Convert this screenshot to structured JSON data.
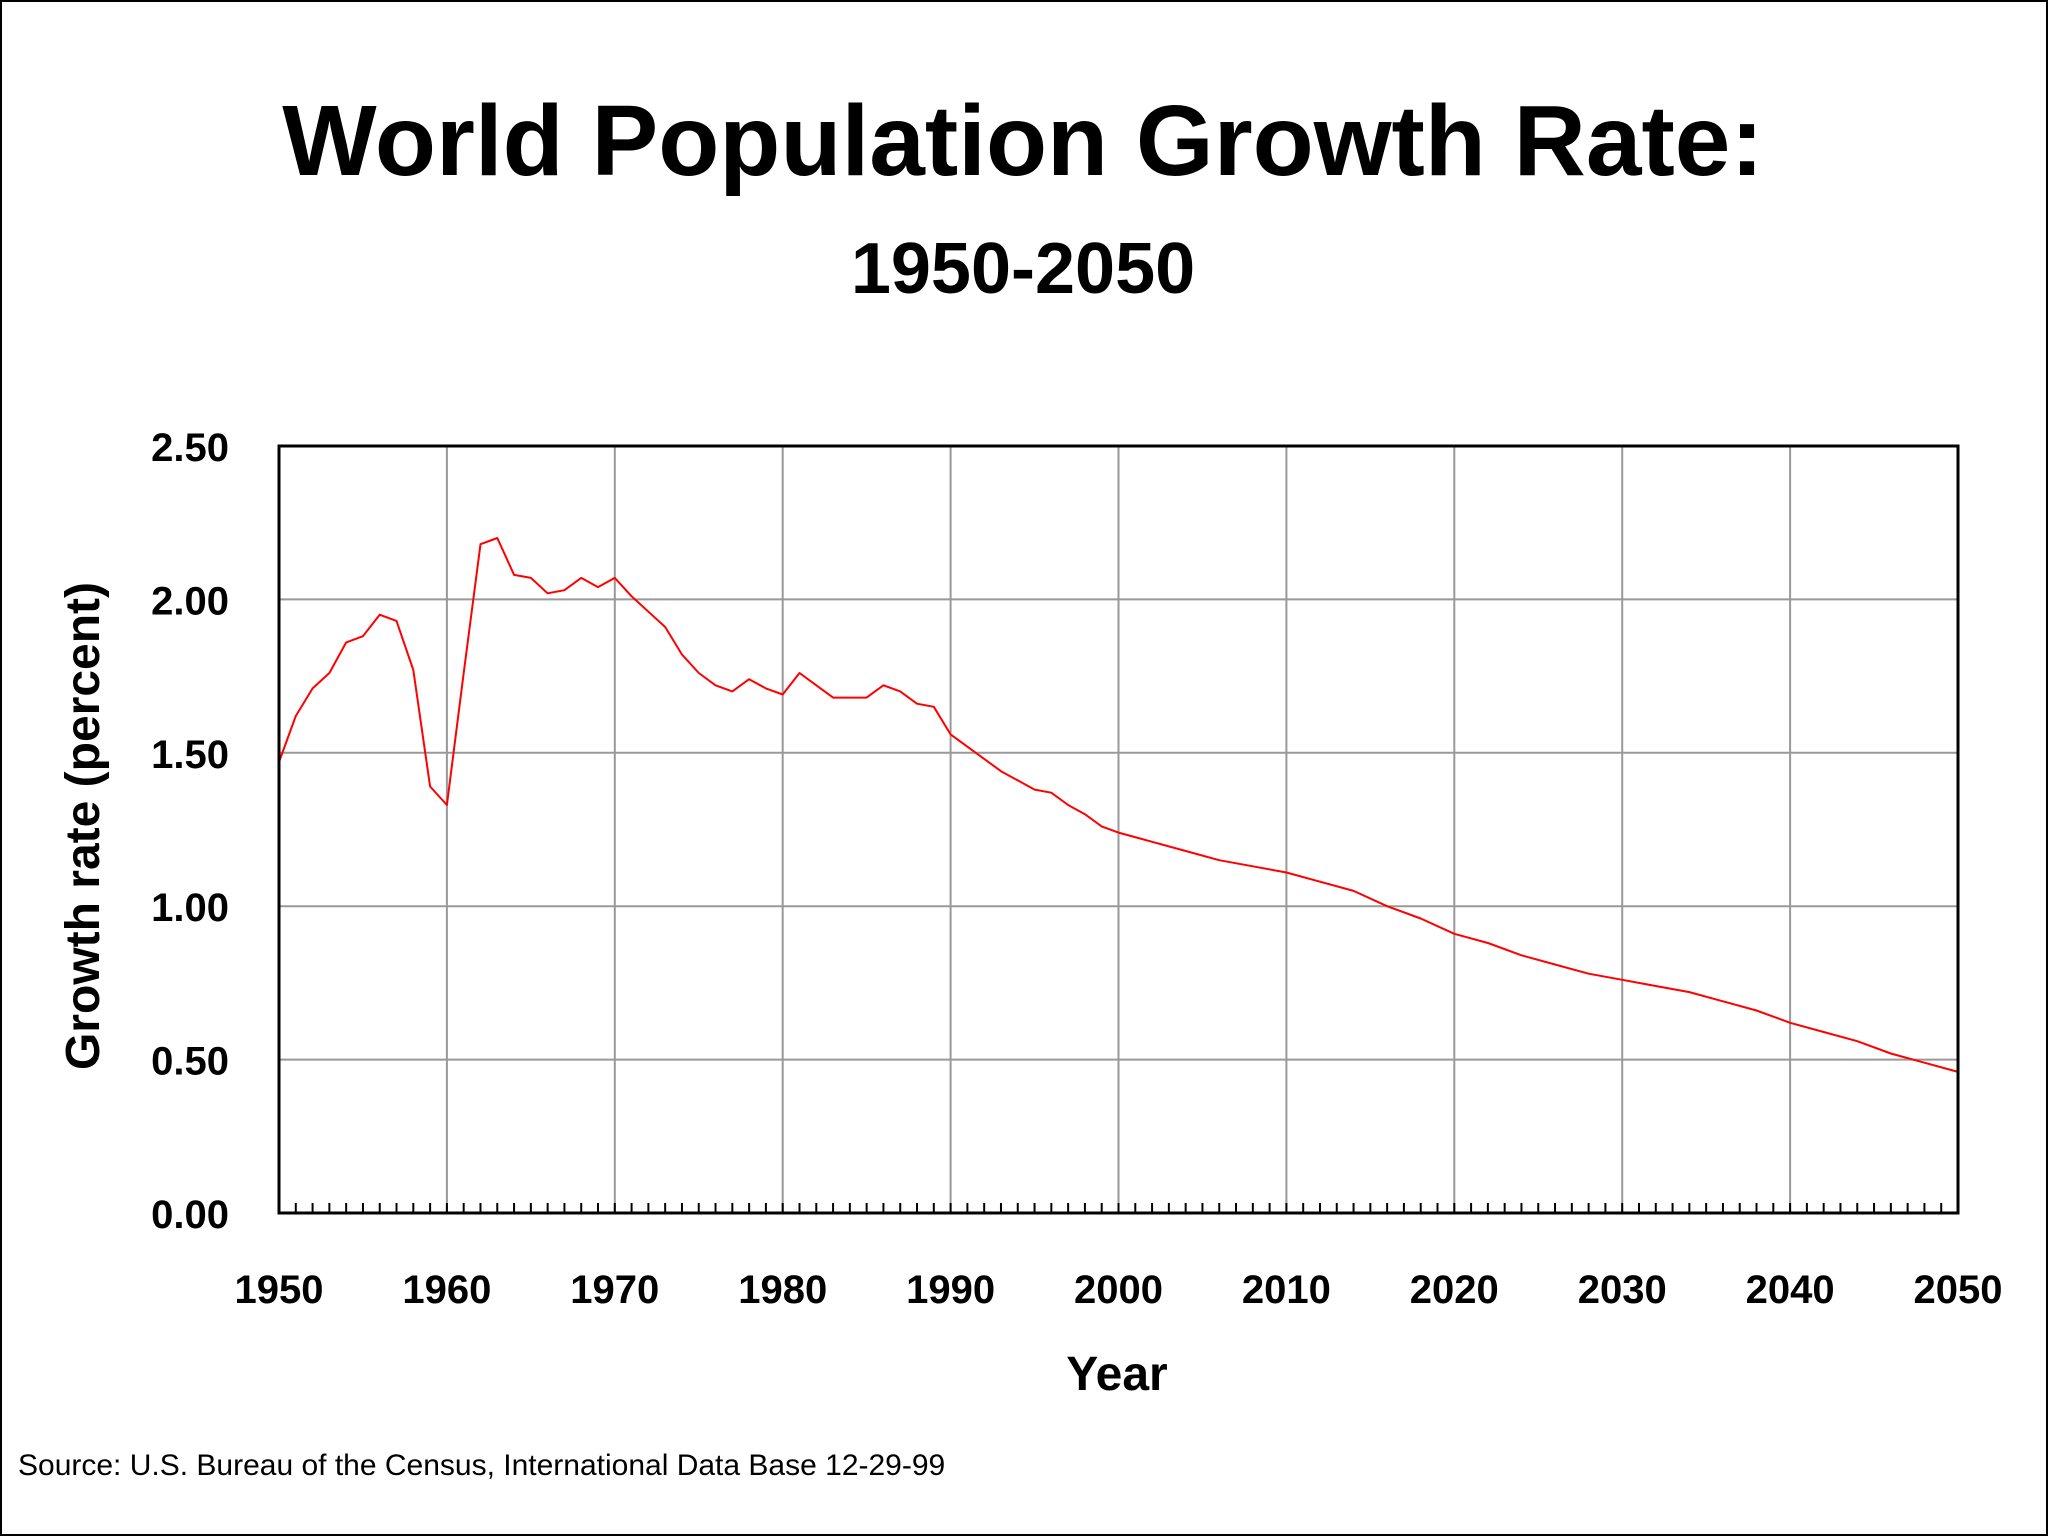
{
  "chart_data": {
    "type": "line",
    "title": "World Population Growth Rate:",
    "subtitle": "1950-2050",
    "xlabel": "Year",
    "ylabel": "Growth rate (percent)",
    "source": "Source: U.S. Bureau of the Census, International Data Base 12-29-99",
    "xlim": [
      1950,
      2050
    ],
    "ylim": [
      0,
      2.5
    ],
    "x_ticks": [
      "1950",
      "1960",
      "1970",
      "1980",
      "1990",
      "2000",
      "2010",
      "2020",
      "2030",
      "2040",
      "2050"
    ],
    "y_ticks": [
      "0.00",
      "0.50",
      "1.00",
      "1.50",
      "2.00",
      "2.50"
    ],
    "grid": true,
    "colors": {
      "line": "#ff0000",
      "grid": "#999999",
      "frame": "#000000"
    },
    "series": [
      {
        "x": [
          1950,
          1951,
          1952,
          1953,
          1954,
          1955,
          1956,
          1957,
          1958,
          1959,
          1960,
          1961,
          1962,
          1963,
          1964,
          1965,
          1966,
          1967,
          1968,
          1969,
          1970,
          1971,
          1972,
          1973,
          1974,
          1975,
          1976,
          1977,
          1978,
          1979,
          1980,
          1981,
          1982,
          1983,
          1984,
          1985,
          1986,
          1987,
          1988,
          1989,
          1990,
          1991,
          1992,
          1993,
          1994,
          1995,
          1996,
          1997,
          1998,
          1999,
          2000,
          2002,
          2004,
          2006,
          2008,
          2010,
          2012,
          2014,
          2016,
          2018,
          2020,
          2022,
          2024,
          2026,
          2028,
          2030,
          2032,
          2034,
          2036,
          2038,
          2040,
          2042,
          2044,
          2046,
          2048,
          2050
        ],
        "y": [
          1.47,
          1.62,
          1.71,
          1.76,
          1.86,
          1.88,
          1.95,
          1.93,
          1.77,
          1.39,
          1.33,
          1.76,
          2.18,
          2.2,
          2.08,
          2.07,
          2.02,
          2.03,
          2.07,
          2.04,
          2.07,
          2.01,
          1.96,
          1.91,
          1.82,
          1.76,
          1.72,
          1.7,
          1.74,
          1.71,
          1.69,
          1.76,
          1.72,
          1.68,
          1.68,
          1.68,
          1.72,
          1.7,
          1.66,
          1.65,
          1.56,
          1.52,
          1.48,
          1.44,
          1.41,
          1.38,
          1.37,
          1.33,
          1.3,
          1.26,
          1.24,
          1.21,
          1.18,
          1.15,
          1.13,
          1.11,
          1.08,
          1.05,
          1.0,
          0.96,
          0.91,
          0.88,
          0.84,
          0.81,
          0.78,
          0.76,
          0.74,
          0.72,
          0.69,
          0.66,
          0.62,
          0.59,
          0.56,
          0.52,
          0.49,
          0.46
        ]
      }
    ]
  }
}
